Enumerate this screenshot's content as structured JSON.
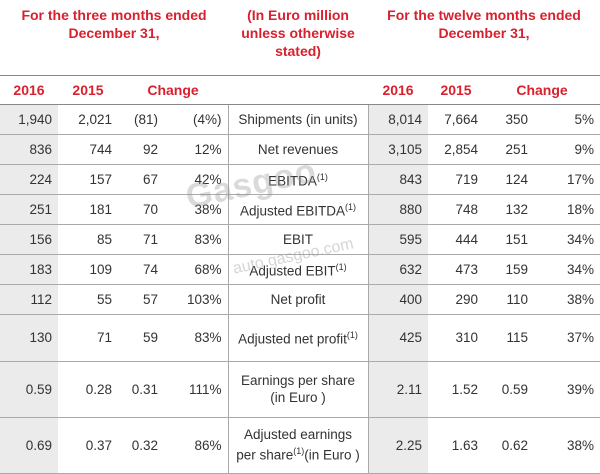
{
  "header": {
    "left": "For the three months ended December 31,",
    "middle": "(In Euro million unless otherwise stated)",
    "right": "For the twelve months ended December 31,"
  },
  "subheader": {
    "y2016": "2016",
    "y2015": "2015",
    "change": "Change",
    "y2016b": "2016",
    "y2015b": "2015",
    "changeb": "Change"
  },
  "rows": [
    {
      "q16": "1,940",
      "q15": "2,021",
      "qc": "(81)",
      "qp": "(4%)",
      "label": "Shipments (in units)",
      "sup": "",
      "label2": "",
      "y16": "8,014",
      "y15": "7,664",
      "yc": "350",
      "yp": "5%"
    },
    {
      "q16": "836",
      "q15": "744",
      "qc": "92",
      "qp": "12%",
      "label": "Net revenues",
      "sup": "",
      "label2": "",
      "y16": "3,105",
      "y15": "2,854",
      "yc": "251",
      "yp": "9%"
    },
    {
      "q16": "224",
      "q15": "157",
      "qc": "67",
      "qp": "42%",
      "label": "EBITDA",
      "sup": "(1)",
      "label2": "",
      "y16": "843",
      "y15": "719",
      "yc": "124",
      "yp": "17%"
    },
    {
      "q16": "251",
      "q15": "181",
      "qc": "70",
      "qp": "38%",
      "label": "Adjusted EBITDA",
      "sup": "(1)",
      "label2": "",
      "y16": "880",
      "y15": "748",
      "yc": "132",
      "yp": "18%"
    },
    {
      "q16": "156",
      "q15": "85",
      "qc": "71",
      "qp": "83%",
      "label": "EBIT",
      "sup": "",
      "label2": "",
      "y16": "595",
      "y15": "444",
      "yc": "151",
      "yp": "34%"
    },
    {
      "q16": "183",
      "q15": "109",
      "qc": "74",
      "qp": "68%",
      "label": "Adjusted EBIT",
      "sup": "(1)",
      "label2": "",
      "y16": "632",
      "y15": "473",
      "yc": "159",
      "yp": "34%"
    },
    {
      "q16": "112",
      "q15": "55",
      "qc": "57",
      "qp": "103%",
      "label": "Net profit",
      "sup": "",
      "label2": "",
      "y16": "400",
      "y15": "290",
      "yc": "110",
      "yp": "38%"
    },
    {
      "q16": "130",
      "q15": "71",
      "qc": "59",
      "qp": "83%",
      "label": "Adjusted net profit",
      "sup": "(1)",
      "label2": "",
      "y16": "425",
      "y15": "310",
      "yc": "115",
      "yp": "37%"
    },
    {
      "q16": "0.59",
      "q15": "0.28",
      "qc": "0.31",
      "qp": "111%",
      "label": "Earnings per share (in Euro )",
      "sup": "",
      "label2": "",
      "y16": "2.11",
      "y15": "1.52",
      "yc": "0.59",
      "yp": "39%"
    },
    {
      "q16": "0.69",
      "q15": "0.37",
      "qc": "0.32",
      "qp": "86%",
      "label": "Adjusted earnings per share",
      "sup": "(1)",
      "label2": "(in Euro )",
      "y16": "2.25",
      "y15": "1.63",
      "yc": "0.62",
      "yp": "38%"
    }
  ],
  "watermark": {
    "logo": "Gasgoo",
    "url": "auto.gasgoo.com"
  }
}
